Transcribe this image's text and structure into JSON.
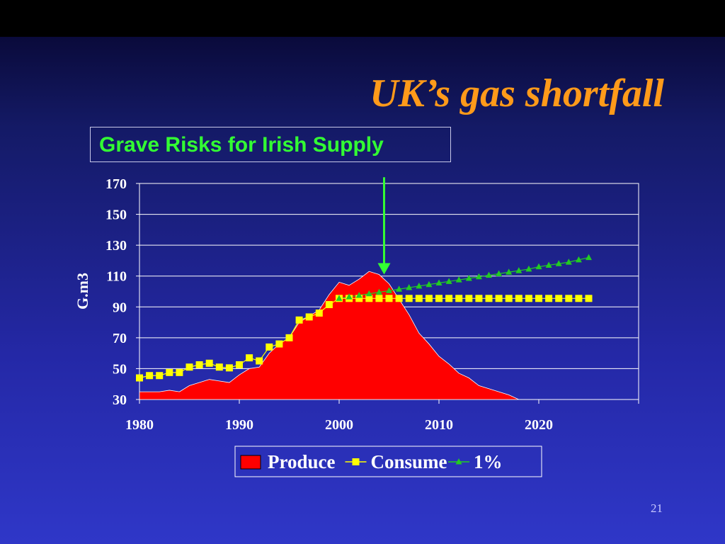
{
  "slide": {
    "title": "UK’s gas shortfall",
    "subtitle": "Grave Risks for Irish Supply",
    "page_number": "21"
  },
  "chart_data": {
    "type": "area",
    "ylabel": "G.m3",
    "xlabel": "",
    "xlim": [
      1980,
      2030
    ],
    "ylim": [
      30,
      170
    ],
    "x_ticks": [
      "1980",
      "1990",
      "2000",
      "2010",
      "2020"
    ],
    "y_ticks": [
      "30",
      "50",
      "70",
      "90",
      "110",
      "130",
      "150",
      "170"
    ],
    "grid": true,
    "legend_placement": "bottom",
    "series": [
      {
        "name": "Produce",
        "kind": "area",
        "color": "#ff0000",
        "x": [
          1980,
          1981,
          1982,
          1983,
          1984,
          1985,
          1986,
          1987,
          1988,
          1989,
          1990,
          1991,
          1992,
          1993,
          1994,
          1995,
          1996,
          1997,
          1998,
          1999,
          2000,
          2001,
          2002,
          2003,
          2004,
          2005,
          2006,
          2007,
          2008,
          2009,
          2010,
          2011,
          2012,
          2013,
          2014,
          2015,
          2016,
          2017,
          2018,
          2019,
          2020,
          2030
        ],
        "values": [
          35,
          35,
          35,
          36,
          35,
          39,
          41,
          43,
          42,
          41,
          46,
          50,
          51,
          60,
          66,
          70,
          80,
          84,
          88,
          98,
          106,
          104,
          108,
          113,
          111,
          105,
          95,
          85,
          73,
          66,
          58,
          53,
          47,
          44,
          39,
          37,
          35,
          33,
          30,
          30,
          30,
          30
        ]
      },
      {
        "name": "Consume",
        "kind": "line",
        "marker": "square",
        "color": "#ffff00",
        "x": [
          1980,
          1981,
          1982,
          1983,
          1984,
          1985,
          1986,
          1987,
          1988,
          1989,
          1990,
          1991,
          1992,
          1993,
          1994,
          1995,
          1996,
          1997,
          1998,
          1999,
          2000,
          2001,
          2002,
          2003,
          2004,
          2005,
          2006,
          2007,
          2008,
          2009,
          2010,
          2011,
          2012,
          2013,
          2014,
          2015,
          2016,
          2017,
          2018,
          2019,
          2020,
          2021,
          2022,
          2023,
          2024,
          2025
        ],
        "values": [
          44,
          45.5,
          45.5,
          47.5,
          47.5,
          51,
          52.5,
          53.5,
          51,
          50.5,
          52.5,
          57,
          55,
          64,
          66,
          70,
          81.5,
          83.5,
          86,
          91.5,
          95.5,
          95.5,
          95.5,
          95.5,
          95.5,
          95.5,
          95.5,
          95.5,
          95.5,
          95.5,
          95.5,
          95.5,
          95.5,
          95.5,
          95.5,
          95.5,
          95.5,
          95.5,
          95.5,
          95.5,
          95.5,
          95.5,
          95.5,
          95.5,
          95.5,
          95.5
        ]
      },
      {
        "name": "1%",
        "kind": "line",
        "marker": "triangle",
        "color": "#22cc22",
        "x": [
          2000,
          2001,
          2002,
          2003,
          2004,
          2005,
          2006,
          2007,
          2008,
          2009,
          2010,
          2011,
          2012,
          2013,
          2014,
          2015,
          2016,
          2017,
          2018,
          2019,
          2020,
          2021,
          2022,
          2023,
          2024,
          2025
        ],
        "values": [
          95.5,
          96.5,
          97.5,
          98.5,
          99.5,
          100.5,
          101.5,
          102.5,
          103.5,
          104.5,
          105.5,
          106.5,
          107.5,
          108.5,
          109.5,
          110.5,
          111.5,
          112.5,
          113.5,
          114.5,
          116,
          117,
          118,
          119,
          120.5,
          122
        ]
      }
    ],
    "annotation": {
      "kind": "arrow",
      "color": "#33ff33",
      "x": 2005,
      "from_y": 174,
      "to_y": 111
    }
  }
}
